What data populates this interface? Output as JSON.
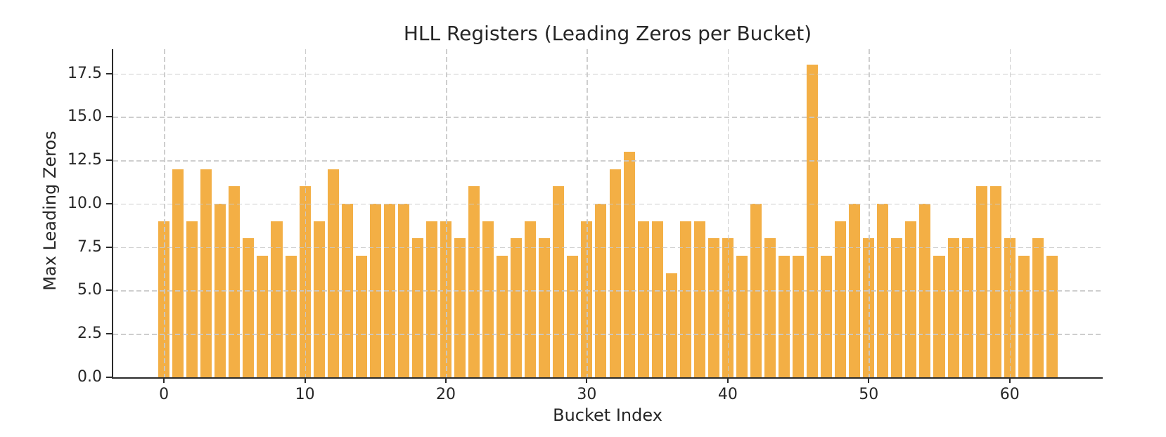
{
  "chart_data": {
    "type": "bar",
    "title": "HLL Registers (Leading Zeros per Bucket)",
    "xlabel": "Bucket Index",
    "ylabel": "Max Leading Zeros",
    "categories": [
      0,
      1,
      2,
      3,
      4,
      5,
      6,
      7,
      8,
      9,
      10,
      11,
      12,
      13,
      14,
      15,
      16,
      17,
      18,
      19,
      20,
      21,
      22,
      23,
      24,
      25,
      26,
      27,
      28,
      29,
      30,
      31,
      32,
      33,
      34,
      35,
      36,
      37,
      38,
      39,
      40,
      41,
      42,
      43,
      44,
      45,
      46,
      47,
      48,
      49,
      50,
      51,
      52,
      53,
      54,
      55,
      56,
      57,
      58,
      59,
      60,
      61,
      62,
      63
    ],
    "values": [
      9,
      12,
      9,
      12,
      10,
      11,
      8,
      7,
      9,
      7,
      11,
      9,
      12,
      10,
      7,
      10,
      10,
      10,
      8,
      9,
      9,
      8,
      11,
      9,
      7,
      8,
      9,
      8,
      11,
      7,
      9,
      10,
      12,
      13,
      9,
      9,
      6,
      9,
      9,
      8,
      8,
      7,
      10,
      8,
      7,
      7,
      18,
      7,
      9,
      10,
      8,
      10,
      8,
      9,
      10,
      7,
      8,
      8,
      11,
      11,
      8,
      7,
      8,
      7
    ],
    "xticks": [
      0,
      10,
      20,
      30,
      40,
      50,
      60
    ],
    "xtick_labels": [
      "0",
      "10",
      "20",
      "30",
      "40",
      "50",
      "60"
    ],
    "yticks": [
      0,
      2.5,
      5,
      7.5,
      10,
      12.5,
      15,
      17.5
    ],
    "ytick_labels": [
      "0.0",
      "2.5",
      "5.0",
      "7.5",
      "10.0",
      "12.5",
      "15.0",
      "17.5"
    ],
    "xlim": [
      -3.6,
      66.6
    ],
    "ylim": [
      0,
      18.9
    ],
    "bar_width_fraction": 0.8,
    "grid": true,
    "legend": null,
    "bar_color": "#F3AF45",
    "grid_color": "#c9c9c9",
    "spine_color": "#2b2b2b",
    "text_color": "#262626"
  }
}
